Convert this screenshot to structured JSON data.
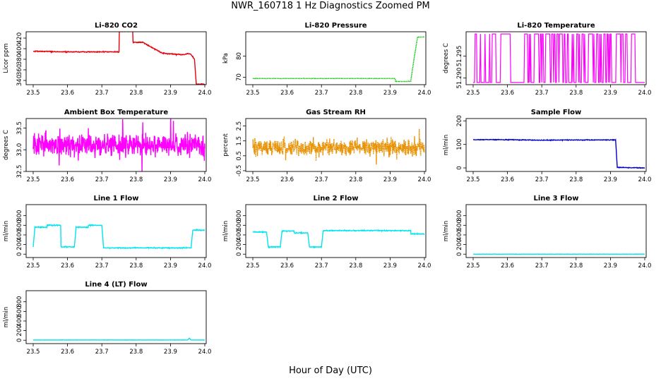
{
  "title": "NWR_160718  1 Hz Diagnostics Zoomed PM",
  "xlabel": "Hour of Day (UTC)",
  "chart_data": [
    {
      "type": "line",
      "title": "Li-820 CO2",
      "ylabel": "Licor ppm",
      "color": "#e8000b",
      "xlim": [
        23.5,
        24.0
      ],
      "ylim": [
        332,
        432
      ],
      "xticks": [
        "23.5",
        "23.6",
        "23.7",
        "23.8",
        "23.9",
        "24.0"
      ],
      "yticks": [
        "340",
        "360",
        "380",
        "400",
        "420"
      ],
      "series": [
        {
          "x": [
            23.5,
            23.55,
            23.55,
            23.74,
            23.75,
            23.75,
            23.78,
            23.79,
            23.79,
            23.82,
            23.83,
            23.83,
            23.875,
            23.875,
            23.9,
            23.915,
            23.915,
            23.94,
            23.95,
            23.95,
            23.96,
            23.97,
            23.975,
            24.0
          ],
          "y": [
            395,
            395,
            394,
            394,
            394,
            433,
            433,
            433,
            412,
            412,
            408,
            408,
            392,
            392,
            390,
            390,
            389,
            389,
            391,
            391,
            389,
            380,
            333,
            333
          ]
        }
      ],
      "noise": 0.7
    },
    {
      "type": "line",
      "title": "Li-820 Pressure",
      "ylabel": "kPa",
      "color": "#00c000",
      "xlim": [
        23.5,
        24.0
      ],
      "ylim": [
        66.5,
        91.5
      ],
      "xticks": [
        "23.5",
        "23.6",
        "23.7",
        "23.8",
        "23.9",
        "24.0"
      ],
      "yticks": [
        "70",
        "80"
      ],
      "series": [
        {
          "x": [
            23.5,
            23.915,
            23.915,
            23.96,
            23.97,
            23.98,
            23.99,
            24.0
          ],
          "y": [
            69.4,
            69.4,
            68.0,
            68.0,
            79.0,
            89.0,
            89.0,
            89.0
          ]
        }
      ],
      "noise": 0.06,
      "dotted": true
    },
    {
      "type": "line",
      "title": "Li-820 Temperature",
      "ylabel": "degrees C",
      "color": "#ff00ff",
      "xlim": [
        23.5,
        24.0
      ],
      "ylim": [
        51.2885,
        51.3005
      ],
      "xticks": [
        "23.5",
        "23.6",
        "23.7",
        "23.8",
        "23.9",
        "24.0"
      ],
      "yticks": [
        "51.290",
        "51.295"
      ],
      "series": [
        {
          "x": [
            23.5,
            24.0
          ],
          "y": [
            51.29,
            51.3
          ]
        }
      ],
      "binary_levels": [
        51.289,
        51.3
      ]
    },
    {
      "type": "line",
      "title": "Ambient Box Temperature",
      "ylabel": "degrees C",
      "color": "#ff00ff",
      "xlim": [
        23.5,
        24.0
      ],
      "ylim": [
        32.5,
        33.72
      ],
      "xticks": [
        "23.5",
        "23.6",
        "23.7",
        "23.8",
        "23.9",
        "24.0"
      ],
      "yticks": [
        "32.5",
        "33.0",
        "33.5"
      ],
      "series": [
        {
          "x": [
            23.5,
            24.0
          ],
          "y": [
            33.12,
            33.12
          ]
        }
      ],
      "noise": 0.18
    },
    {
      "type": "line",
      "title": "Gas Stream RH",
      "ylabel": "percent",
      "color": "#e89000",
      "xlim": [
        23.5,
        24.0
      ],
      "ylim": [
        -0.55,
        3.0
      ],
      "xticks": [
        "23.5",
        "23.6",
        "23.7",
        "23.8",
        "23.9",
        "24.0"
      ],
      "yticks": [
        "-0.5",
        "0.5",
        "1.5",
        "2.5"
      ],
      "series": [
        {
          "x": [
            23.5,
            24.0
          ],
          "y": [
            1.05,
            1.05
          ]
        }
      ],
      "noise": 0.4,
      "dotted": true
    },
    {
      "type": "line",
      "title": "Sample Flow",
      "ylabel": "ml/min",
      "color": "#0000cc",
      "xlim": [
        23.5,
        24.0
      ],
      "ylim": [
        -15,
        210
      ],
      "xticks": [
        "23.5",
        "23.6",
        "23.7",
        "23.8",
        "23.9",
        "24.0"
      ],
      "yticks": [
        "0",
        "100",
        "200"
      ],
      "series": [
        {
          "x": [
            23.5,
            23.6,
            23.7,
            23.8,
            23.9,
            23.915,
            23.92,
            24.0
          ],
          "y": [
            120,
            120,
            118,
            119,
            119,
            119,
            2,
            0
          ]
        }
      ],
      "noise": 1.2
    },
    {
      "type": "line",
      "title": "Line 1 Flow",
      "ylabel": "ml/min",
      "color": "#00e5ee",
      "xlim": [
        23.5,
        24.0
      ],
      "ylim": [
        -70,
        1030
      ],
      "xticks": [
        "23.5",
        "23.6",
        "23.7",
        "23.8",
        "23.9",
        "24.0"
      ],
      "yticks": [
        "0",
        "200",
        "400",
        "600",
        "800"
      ],
      "series": [
        {
          "x": [
            23.5,
            23.505,
            23.54,
            23.54,
            23.58,
            23.58,
            23.62,
            23.625,
            23.66,
            23.66,
            23.7,
            23.705,
            23.75,
            23.96,
            23.965,
            24.0
          ],
          "y": [
            150,
            560,
            560,
            600,
            600,
            150,
            150,
            560,
            560,
            600,
            600,
            130,
            130,
            130,
            500,
            500
          ]
        }
      ],
      "noise": 8
    },
    {
      "type": "line",
      "title": "Line 2 Flow",
      "ylabel": "ml/min",
      "color": "#00e5ee",
      "xlim": [
        23.5,
        24.0
      ],
      "ylim": [
        -70,
        1030
      ],
      "xticks": [
        "23.5",
        "23.6",
        "23.7",
        "23.8",
        "23.9",
        "24.0"
      ],
      "yticks": [
        "0",
        "200",
        "400",
        "600",
        "800"
      ],
      "series": [
        {
          "x": [
            23.5,
            23.54,
            23.545,
            23.58,
            23.585,
            23.62,
            23.62,
            23.66,
            23.665,
            23.7,
            23.705,
            23.96,
            23.96,
            24.0
          ],
          "y": [
            460,
            460,
            150,
            150,
            480,
            480,
            440,
            440,
            150,
            150,
            490,
            490,
            420,
            420
          ]
        }
      ],
      "noise": 8
    },
    {
      "type": "line",
      "title": "Line 3 Flow",
      "ylabel": "ml/min",
      "color": "#00e5ee",
      "xlim": [
        23.5,
        24.0
      ],
      "ylim": [
        -70,
        1030
      ],
      "xticks": [
        "23.5",
        "23.6",
        "23.7",
        "23.8",
        "23.9",
        "24.0"
      ],
      "yticks": [
        "0",
        "200",
        "400",
        "600",
        "800"
      ],
      "series": [
        {
          "x": [
            23.5,
            24.0
          ],
          "y": [
            0,
            0
          ]
        }
      ],
      "noise": 2
    },
    {
      "type": "line",
      "title": "Line 4 (LT) Flow",
      "ylabel": "ml/min",
      "color": "#00e5ee",
      "xlim": [
        23.5,
        24.0
      ],
      "ylim": [
        -70,
        1030
      ],
      "xticks": [
        "23.5",
        "23.6",
        "23.7",
        "23.8",
        "23.9",
        "24.0"
      ],
      "yticks": [
        "0",
        "200",
        "400",
        "600",
        "800"
      ],
      "series": [
        {
          "x": [
            23.5,
            23.95,
            23.955,
            23.96,
            24.0
          ],
          "y": [
            5,
            5,
            45,
            5,
            5
          ]
        }
      ],
      "noise": 2
    }
  ]
}
